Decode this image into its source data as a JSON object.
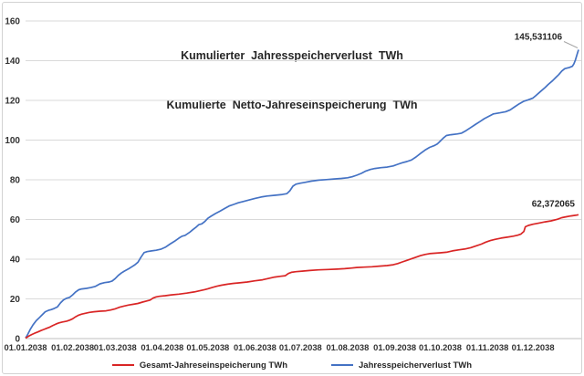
{
  "title": {
    "line1": "Kumulierter  Jahresspeicherverlust  TWh",
    "line2": "Kumulierte  Netto-Jahreseinspeicherung  TWh"
  },
  "legend": [
    {
      "label": "Gesamt-Jahreseinspeicherung TWh",
      "color": "#d92525"
    },
    {
      "label": "Jahresspeicherverlust TWh",
      "color": "#4472c4"
    }
  ],
  "colors": {
    "gridline": "#d9d9d9",
    "axis": "#bfbfbf",
    "leader": "#a6a6a6",
    "text": "#262626"
  },
  "chart_data": {
    "type": "line",
    "title": [
      "Kumulierter Jahresspeicherverlust TWh",
      "Kumulierte Netto-Jahreseinspeicherung TWh"
    ],
    "xlabel": "",
    "ylabel": "",
    "ylim": [
      0,
      160
    ],
    "y_ticks": [
      0,
      20,
      40,
      60,
      80,
      100,
      120,
      140,
      160
    ],
    "x_ticklabels": [
      "01.01.2038",
      "01.02.2038",
      "01.03.2038",
      "01.04.2038",
      "01.05.2038",
      "01.06.2038",
      "01.07.2038",
      "01.08.2038",
      "01.09.2038",
      "01.10.2038",
      "01.11.2038",
      "01.12.2038"
    ],
    "x_tick_days": [
      0,
      31,
      59,
      90,
      120,
      151,
      181,
      212,
      243,
      273,
      304,
      334
    ],
    "x_range_days": [
      0,
      364
    ],
    "grid": "horizontal",
    "legend_position": "bottom",
    "series": [
      {
        "name": "Jahresspeicherverlust TWh",
        "color": "#4472c4",
        "end_value": 145.531106,
        "annotation": {
          "text": "145,531106",
          "leader": true
        },
        "points": [
          [
            0,
            0.3
          ],
          [
            1,
            1.5
          ],
          [
            3,
            4.5
          ],
          [
            5,
            7
          ],
          [
            7,
            9
          ],
          [
            9,
            10.5
          ],
          [
            11,
            12
          ],
          [
            13,
            13.5
          ],
          [
            15,
            14.2
          ],
          [
            17,
            14.6
          ],
          [
            19,
            15.2
          ],
          [
            21,
            16
          ],
          [
            23,
            18
          ],
          [
            25,
            19.5
          ],
          [
            27,
            20.3
          ],
          [
            29,
            20.8
          ],
          [
            31,
            22
          ],
          [
            33,
            23.5
          ],
          [
            35,
            24.6
          ],
          [
            37,
            25
          ],
          [
            40,
            25.3
          ],
          [
            43,
            25.7
          ],
          [
            46,
            26.3
          ],
          [
            49,
            27.6
          ],
          [
            52,
            28.2
          ],
          [
            55,
            28.5
          ],
          [
            57,
            29
          ],
          [
            59,
            30.2
          ],
          [
            61,
            31.8
          ],
          [
            63,
            33
          ],
          [
            65,
            34
          ],
          [
            68,
            35.2
          ],
          [
            70,
            36.2
          ],
          [
            72,
            37.2
          ],
          [
            74,
            38.5
          ],
          [
            76,
            41
          ],
          [
            78,
            43.3
          ],
          [
            80,
            43.8
          ],
          [
            83,
            44.2
          ],
          [
            86,
            44.5
          ],
          [
            89,
            45
          ],
          [
            92,
            46
          ],
          [
            95,
            47.6
          ],
          [
            98,
            49
          ],
          [
            101,
            50.6
          ],
          [
            103,
            51.6
          ],
          [
            105,
            52
          ],
          [
            108,
            53.5
          ],
          [
            110,
            54.8
          ],
          [
            112,
            56
          ],
          [
            114,
            57.4
          ],
          [
            116,
            57.8
          ],
          [
            118,
            59
          ],
          [
            120,
            60.6
          ],
          [
            122,
            61.6
          ],
          [
            125,
            63
          ],
          [
            128,
            64.2
          ],
          [
            131,
            65.5
          ],
          [
            134,
            66.8
          ],
          [
            137,
            67.6
          ],
          [
            140,
            68.4
          ],
          [
            143,
            69
          ],
          [
            147,
            69.8
          ],
          [
            151,
            70.6
          ],
          [
            155,
            71.3
          ],
          [
            159,
            71.8
          ],
          [
            164,
            72.2
          ],
          [
            169,
            72.6
          ],
          [
            172,
            73
          ],
          [
            174,
            74.5
          ],
          [
            176,
            76.8
          ],
          [
            178,
            77.8
          ],
          [
            181,
            78.3
          ],
          [
            184,
            78.7
          ],
          [
            188,
            79.3
          ],
          [
            193,
            79.8
          ],
          [
            198,
            80.1
          ],
          [
            203,
            80.4
          ],
          [
            208,
            80.7
          ],
          [
            212,
            81
          ],
          [
            215,
            81.5
          ],
          [
            218,
            82.3
          ],
          [
            221,
            83.2
          ],
          [
            224,
            84.4
          ],
          [
            227,
            85.2
          ],
          [
            230,
            85.7
          ],
          [
            234,
            86.1
          ],
          [
            238,
            86.4
          ],
          [
            242,
            87
          ],
          [
            245,
            87.8
          ],
          [
            248,
            88.6
          ],
          [
            251,
            89.2
          ],
          [
            254,
            90
          ],
          [
            257,
            91.5
          ],
          [
            260,
            93.3
          ],
          [
            263,
            95
          ],
          [
            266,
            96.3
          ],
          [
            269,
            97.2
          ],
          [
            271,
            98
          ],
          [
            273,
            99.5
          ],
          [
            275,
            101
          ],
          [
            277,
            102.3
          ],
          [
            280,
            102.7
          ],
          [
            284,
            103.1
          ],
          [
            287,
            103.5
          ],
          [
            290,
            104.8
          ],
          [
            293,
            106.3
          ],
          [
            296,
            107.8
          ],
          [
            299,
            109.3
          ],
          [
            302,
            110.8
          ],
          [
            305,
            112
          ],
          [
            308,
            113.2
          ],
          [
            312,
            113.7
          ],
          [
            316,
            114.3
          ],
          [
            319,
            115.2
          ],
          [
            322,
            116.8
          ],
          [
            325,
            118.3
          ],
          [
            328,
            119.6
          ],
          [
            331,
            120.3
          ],
          [
            334,
            121.2
          ],
          [
            336,
            122.5
          ],
          [
            339,
            124.5
          ],
          [
            342,
            126.5
          ],
          [
            344,
            128
          ],
          [
            347,
            130
          ],
          [
            349,
            131.5
          ],
          [
            351,
            133
          ],
          [
            353,
            134.8
          ],
          [
            355,
            136
          ],
          [
            358,
            136.6
          ],
          [
            360,
            137.2
          ],
          [
            361,
            138.5
          ],
          [
            362,
            140.5
          ],
          [
            363,
            143
          ],
          [
            364,
            145.531106
          ]
        ]
      },
      {
        "name": "Gesamt-Jahreseinspeicherung TWh",
        "color": "#d92525",
        "end_value": 62.372065,
        "annotation": {
          "text": "62,372065",
          "leader": false
        },
        "points": [
          [
            0,
            0.2
          ],
          [
            2,
            1.2
          ],
          [
            4,
            2
          ],
          [
            6,
            2.7
          ],
          [
            8,
            3.3
          ],
          [
            10,
            4
          ],
          [
            12,
            4.6
          ],
          [
            14,
            5.2
          ],
          [
            16,
            5.8
          ],
          [
            18,
            6.6
          ],
          [
            20,
            7.3
          ],
          [
            22,
            7.9
          ],
          [
            24,
            8.3
          ],
          [
            27,
            8.8
          ],
          [
            29,
            9.3
          ],
          [
            31,
            10
          ],
          [
            33,
            11
          ],
          [
            35,
            11.8
          ],
          [
            37,
            12.3
          ],
          [
            39,
            12.7
          ],
          [
            42,
            13.2
          ],
          [
            45,
            13.5
          ],
          [
            49,
            13.8
          ],
          [
            53,
            14
          ],
          [
            56,
            14.4
          ],
          [
            59,
            15
          ],
          [
            62,
            15.8
          ],
          [
            65,
            16.4
          ],
          [
            68,
            16.9
          ],
          [
            71,
            17.3
          ],
          [
            74,
            17.7
          ],
          [
            77,
            18.4
          ],
          [
            80,
            19
          ],
          [
            82,
            19.4
          ],
          [
            84,
            20.4
          ],
          [
            86,
            21
          ],
          [
            88,
            21.3
          ],
          [
            92,
            21.6
          ],
          [
            96,
            22
          ],
          [
            101,
            22.4
          ],
          [
            106,
            22.9
          ],
          [
            111,
            23.5
          ],
          [
            115,
            24.2
          ],
          [
            118,
            24.7
          ],
          [
            120,
            25.1
          ],
          [
            123,
            25.8
          ],
          [
            126,
            26.4
          ],
          [
            129,
            26.9
          ],
          [
            133,
            27.4
          ],
          [
            137,
            27.8
          ],
          [
            141,
            28.1
          ],
          [
            146,
            28.5
          ],
          [
            151,
            29.1
          ],
          [
            156,
            29.6
          ],
          [
            160,
            30.3
          ],
          [
            164,
            31
          ],
          [
            168,
            31.4
          ],
          [
            171,
            31.7
          ],
          [
            173,
            32.8
          ],
          [
            175,
            33.4
          ],
          [
            178,
            33.7
          ],
          [
            182,
            34
          ],
          [
            187,
            34.3
          ],
          [
            193,
            34.6
          ],
          [
            199,
            34.8
          ],
          [
            205,
            35
          ],
          [
            210,
            35.2
          ],
          [
            214,
            35.5
          ],
          [
            218,
            35.8
          ],
          [
            223,
            36
          ],
          [
            228,
            36.2
          ],
          [
            233,
            36.5
          ],
          [
            238,
            36.8
          ],
          [
            242,
            37.2
          ],
          [
            245,
            37.8
          ],
          [
            248,
            38.6
          ],
          [
            251,
            39.4
          ],
          [
            254,
            40.2
          ],
          [
            257,
            41
          ],
          [
            260,
            41.8
          ],
          [
            263,
            42.4
          ],
          [
            266,
            42.8
          ],
          [
            269,
            43
          ],
          [
            273,
            43.2
          ],
          [
            277,
            43.5
          ],
          [
            281,
            44.2
          ],
          [
            285,
            44.7
          ],
          [
            289,
            45.1
          ],
          [
            293,
            45.8
          ],
          [
            297,
            46.8
          ],
          [
            300,
            47.6
          ],
          [
            303,
            48.6
          ],
          [
            306,
            49.4
          ],
          [
            309,
            50
          ],
          [
            313,
            50.6
          ],
          [
            317,
            51.1
          ],
          [
            321,
            51.6
          ],
          [
            324,
            52.1
          ],
          [
            326,
            52.6
          ],
          [
            328,
            54
          ],
          [
            329,
            56.3
          ],
          [
            331,
            57
          ],
          [
            334,
            57.6
          ],
          [
            338,
            58.2
          ],
          [
            342,
            58.8
          ],
          [
            346,
            59.3
          ],
          [
            350,
            60.1
          ],
          [
            353,
            60.9
          ],
          [
            356,
            61.4
          ],
          [
            359,
            61.8
          ],
          [
            362,
            62.1
          ],
          [
            364,
            62.372065
          ]
        ]
      }
    ]
  }
}
